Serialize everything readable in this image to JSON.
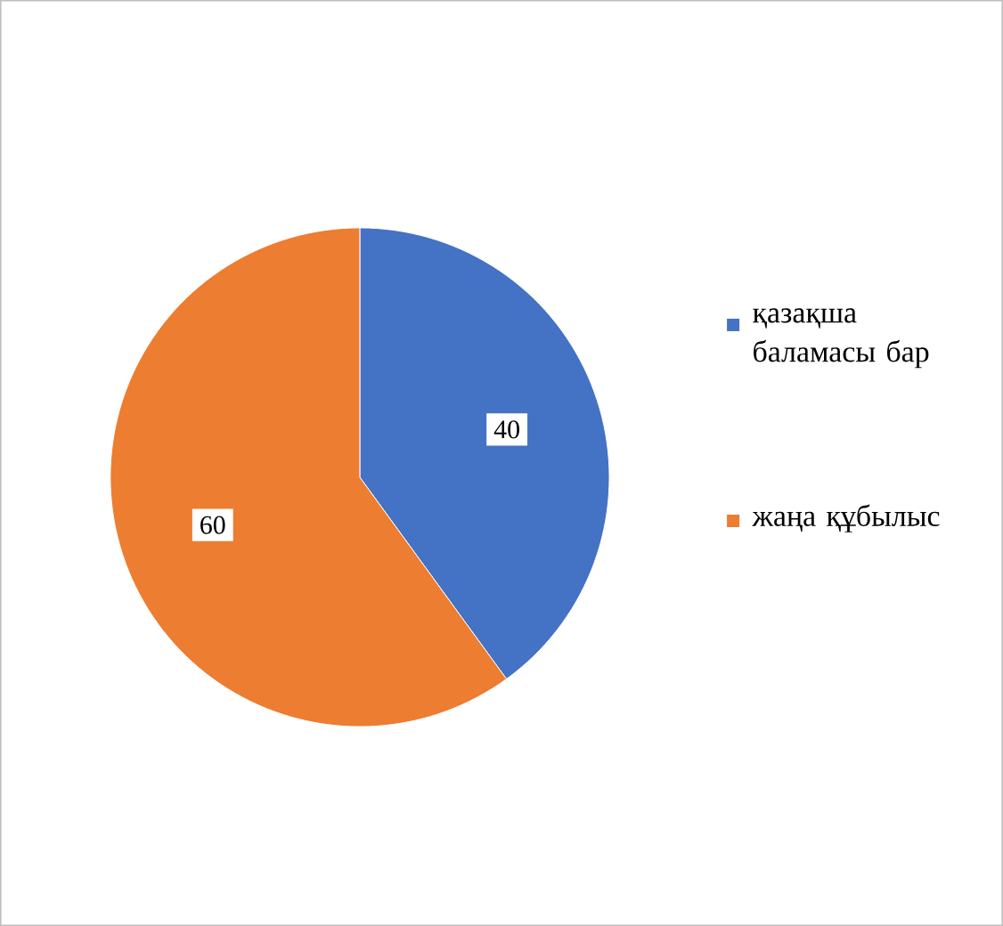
{
  "chart_data": {
    "type": "pie",
    "categories": [
      "қазақша баламасы бар",
      "жаңа құбылыс"
    ],
    "values": [
      40,
      60
    ],
    "colors": [
      "#4472c4",
      "#ed7d31"
    ],
    "data_labels": true,
    "legend": "right"
  }
}
